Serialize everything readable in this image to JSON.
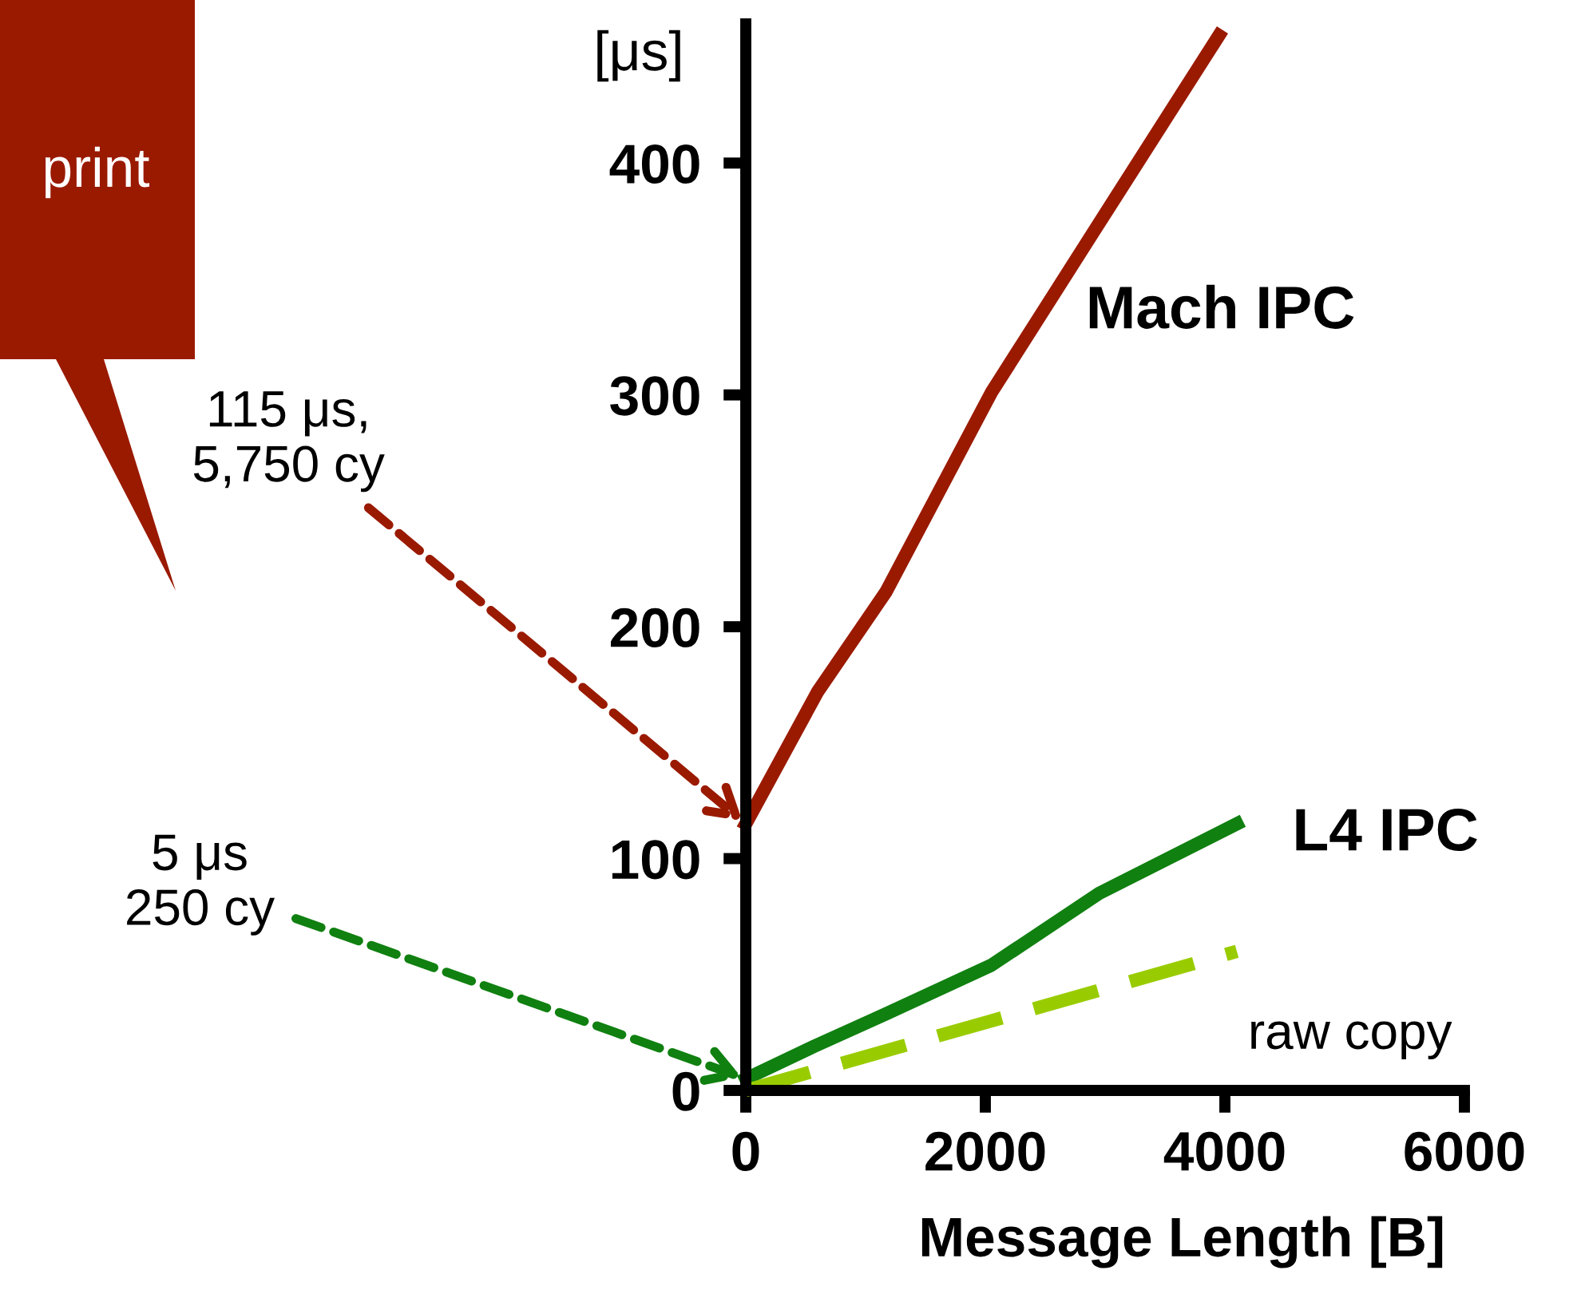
{
  "chart_data": {
    "type": "line",
    "xlabel": "Message Length [B]",
    "ylabel": "[μs]",
    "xlim": [
      0,
      6000
    ],
    "xticks": [
      0,
      2000,
      4000,
      6000
    ],
    "ylim": [
      0,
      460
    ],
    "yticks": [
      0,
      100,
      200,
      300,
      400
    ],
    "grid": false,
    "legend": false,
    "marker": "none",
    "series": [
      {
        "name": "Mach IPC",
        "color": "#9a1a00",
        "line_style": "solid",
        "x": [
          0,
          600,
          1170,
          2050,
          2900,
          3950
        ],
        "values": [
          115,
          172,
          215,
          301,
          370,
          455
        ]
      },
      {
        "name": "L4 IPC",
        "color": "#108010",
        "line_style": "solid",
        "x": [
          0,
          570,
          1170,
          2050,
          2950,
          4100
        ],
        "values": [
          5,
          19,
          33,
          54,
          85,
          115
        ]
      },
      {
        "name": "raw copy",
        "color": "#99cc00",
        "line_style": "dashed",
        "x": [
          0,
          4100
        ],
        "values": [
          0,
          60
        ]
      }
    ],
    "annotations": [
      {
        "text": "115 μs,\n5,750 cy",
        "x": 0,
        "y": 115
      },
      {
        "text": "5 μs\n250 cy",
        "x": 0,
        "y": 5
      },
      "print"
    ]
  }
}
